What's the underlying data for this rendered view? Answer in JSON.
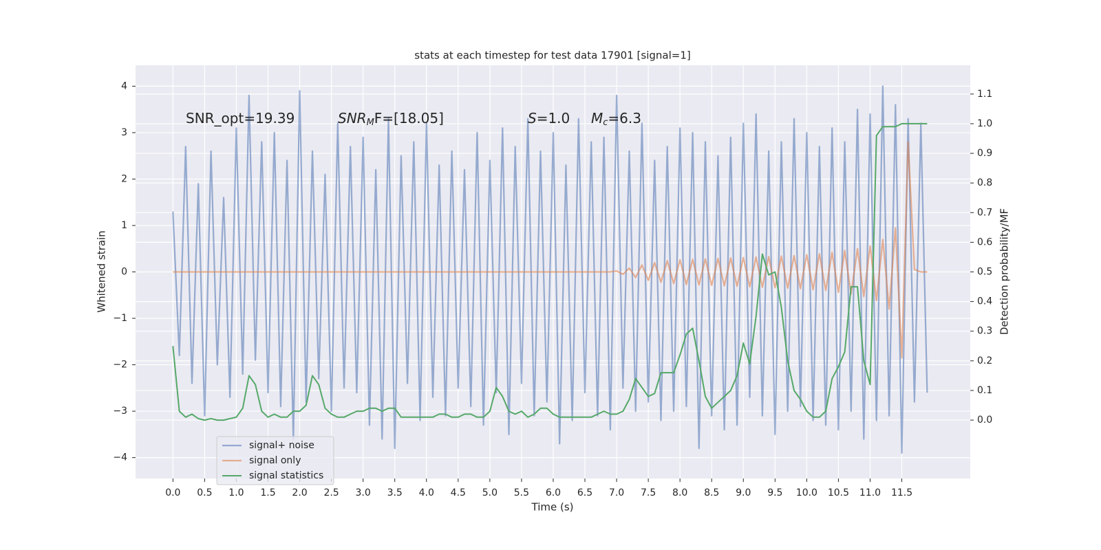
{
  "chart_data": {
    "type": "line",
    "title": "stats at each timestep for test data 17901 [signal=1]",
    "xlabel": "Time (s)",
    "ylabel": "Whitened strain",
    "y2label": "Detection probability/MF",
    "annotations": [
      {
        "text": "SNR_opt=19.39"
      },
      {
        "italic": "SNR",
        "sub": "M",
        "text": "F=[18.05]"
      },
      {
        "italic": "S",
        "text": "=1.0"
      },
      {
        "italic": "M",
        "sub": "c",
        "text": "=6.3"
      }
    ],
    "x": [
      0,
      0.1,
      0.2,
      0.3,
      0.4,
      0.5,
      0.6,
      0.7,
      0.8,
      0.9,
      1,
      1.1,
      1.2,
      1.3,
      1.4,
      1.5,
      1.6,
      1.7,
      1.8,
      1.9,
      2,
      2.1,
      2.2,
      2.3,
      2.4,
      2.5,
      2.6,
      2.7,
      2.8,
      2.9,
      3,
      3.1,
      3.2,
      3.3,
      3.4,
      3.5,
      3.6,
      3.7,
      3.8,
      3.9,
      4,
      4.1,
      4.2,
      4.3,
      4.4,
      4.5,
      4.6,
      4.7,
      4.8,
      4.9,
      5,
      5.1,
      5.2,
      5.3,
      5.4,
      5.5,
      5.6,
      5.7,
      5.8,
      5.9,
      6,
      6.1,
      6.2,
      6.3,
      6.4,
      6.5,
      6.6,
      6.7,
      6.8,
      6.9,
      7,
      7.1,
      7.2,
      7.3,
      7.4,
      7.5,
      7.6,
      7.7,
      7.8,
      7.9,
      8,
      8.1,
      8.2,
      8.3,
      8.4,
      8.5,
      8.6,
      8.7,
      8.8,
      8.9,
      9,
      9.1,
      9.2,
      9.3,
      9.4,
      9.5,
      9.6,
      9.7,
      9.8,
      9.9,
      10,
      10.1,
      10.2,
      10.3,
      10.4,
      10.5,
      10.6,
      10.7,
      10.8,
      10.9,
      11,
      11.1,
      11.2,
      11.3,
      11.4,
      11.5,
      11.6,
      11.7,
      11.8,
      11.9
    ],
    "series": [
      {
        "name": "signal+ noise",
        "color": "#4c72b0",
        "values": [
          1.3,
          -1.8,
          2.7,
          -2.4,
          1.9,
          -3.1,
          2.6,
          -2.0,
          1.6,
          -2.7,
          3.1,
          -2.2,
          3.8,
          -1.9,
          2.8,
          -2.6,
          3.0,
          -2.9,
          2.4,
          -3.6,
          3.9,
          -2.8,
          2.6,
          -2.3,
          2.1,
          -3.0,
          3.2,
          -2.5,
          2.7,
          -2.6,
          2.9,
          -3.3,
          2.2,
          -3.6,
          3.3,
          -3.8,
          2.5,
          -2.4,
          2.8,
          -3.2,
          3.2,
          -2.7,
          2.3,
          -3.1,
          2.6,
          -2.5,
          2.2,
          -2.9,
          3.0,
          -3.3,
          2.4,
          -2.6,
          3.1,
          -3.5,
          2.7,
          -2.4,
          3.3,
          -3.1,
          2.6,
          -2.8,
          3.0,
          -3.7,
          2.3,
          -3.2,
          3.3,
          -2.6,
          2.8,
          -3.1,
          2.9,
          -3.4,
          3.8,
          -2.5,
          2.6,
          -3.0,
          3.2,
          -2.8,
          2.4,
          -3.2,
          2.7,
          -3.0,
          3.1,
          -2.9,
          3.0,
          -3.8,
          2.8,
          -3.1,
          2.5,
          -3.4,
          2.9,
          -3.3,
          3.2,
          -2.7,
          3.4,
          -3.1,
          2.6,
          -3.5,
          2.8,
          -3.0,
          3.3,
          -2.9,
          3.0,
          -3.2,
          2.7,
          -3.3,
          3.1,
          -3.4,
          2.8,
          -3.0,
          3.5,
          -3.6,
          3.4,
          -3.2,
          4.0,
          -3.1,
          3.6,
          -3.9,
          3.3,
          -2.8,
          3.2,
          -2.6
        ]
      },
      {
        "name": "signal only",
        "color": "#dd8452",
        "values": [
          0,
          0,
          0,
          0,
          0,
          0,
          0,
          0,
          0,
          0,
          0,
          0,
          0,
          0,
          0,
          0,
          0,
          0,
          0,
          0,
          0,
          0,
          0,
          0,
          0,
          0,
          0,
          0,
          0,
          0,
          0,
          0,
          0,
          0,
          0,
          0,
          0,
          0,
          0,
          0,
          0,
          0,
          0,
          0,
          0,
          0,
          0,
          0,
          0,
          0,
          0,
          0,
          0,
          0,
          0,
          0,
          0,
          0,
          0,
          0,
          0,
          0,
          0,
          0,
          0,
          0,
          0,
          0,
          0,
          0,
          0.02,
          -0.05,
          0.08,
          -0.12,
          0.15,
          -0.18,
          0.2,
          -0.22,
          0.24,
          -0.25,
          0.26,
          -0.27,
          0.27,
          -0.28,
          0.28,
          -0.29,
          0.29,
          -0.3,
          0.3,
          -0.31,
          0.31,
          -0.32,
          0.32,
          -0.33,
          0.33,
          -0.34,
          0.34,
          -0.35,
          0.35,
          -0.36,
          0.37,
          -0.38,
          0.39,
          -0.4,
          0.42,
          -0.44,
          0.46,
          -0.48,
          0.5,
          -0.53,
          0.56,
          -0.62,
          0.7,
          -0.8,
          0.95,
          -1.85,
          2.8,
          0.05,
          0,
          0
        ]
      },
      {
        "name": "signal statistics",
        "color": "#55a868",
        "axis": "y2",
        "values": [
          0.25,
          0.03,
          0.01,
          0.02,
          0.005,
          0,
          0.005,
          0,
          0,
          0.005,
          0.01,
          0.04,
          0.15,
          0.12,
          0.03,
          0.01,
          0.02,
          0.01,
          0.01,
          0.03,
          0.03,
          0.05,
          0.15,
          0.12,
          0.04,
          0.02,
          0.01,
          0.01,
          0.02,
          0.03,
          0.03,
          0.04,
          0.04,
          0.03,
          0.04,
          0.04,
          0.01,
          0.01,
          0.01,
          0.01,
          0.01,
          0.01,
          0.02,
          0.02,
          0.01,
          0.01,
          0.02,
          0.02,
          0.01,
          0.01,
          0.03,
          0.11,
          0.08,
          0.03,
          0.02,
          0.03,
          0.01,
          0.02,
          0.04,
          0.04,
          0.02,
          0.01,
          0.01,
          0.01,
          0.01,
          0.01,
          0.01,
          0.02,
          0.03,
          0.02,
          0.02,
          0.03,
          0.07,
          0.14,
          0.11,
          0.08,
          0.09,
          0.16,
          0.16,
          0.16,
          0.22,
          0.29,
          0.31,
          0.2,
          0.08,
          0.04,
          0.06,
          0.08,
          0.1,
          0.15,
          0.26,
          0.19,
          0.35,
          0.56,
          0.49,
          0.5,
          0.38,
          0.2,
          0.1,
          0.07,
          0.03,
          0.01,
          0.01,
          0.03,
          0.14,
          0.18,
          0.23,
          0.45,
          0.45,
          0.2,
          0.12,
          0.96,
          0.99,
          0.99,
          0.99,
          1,
          1,
          1,
          1,
          1
        ]
      }
    ],
    "xlim": [
      -0.59,
      12.58
    ],
    "ylim": [
      -4.45,
      4.45
    ],
    "y2lim": [
      -0.197,
      1.197
    ],
    "xticks": [
      {
        "value": 0,
        "label": "0.0"
      },
      0.5,
      {
        "value": 1,
        "label": "1.0"
      },
      1.5,
      {
        "value": 2,
        "label": "2.0"
      },
      2.5,
      {
        "value": 3,
        "label": "3.0"
      },
      3.5,
      {
        "value": 4,
        "label": "4.0"
      },
      4.5,
      {
        "value": 5,
        "label": "5.0"
      },
      5.5,
      {
        "value": 6,
        "label": "6.0"
      },
      6.5,
      {
        "value": 7,
        "label": "7.0"
      },
      7.5,
      {
        "value": 8,
        "label": "8.0"
      },
      8.5,
      {
        "value": 9,
        "label": "9.0"
      },
      9.5,
      {
        "value": 10,
        "label": "10.0"
      },
      10.5,
      {
        "value": 11,
        "label": "11.0"
      },
      11.5
    ],
    "yticks": [
      {
        "value": -4,
        "label": "−4"
      },
      {
        "value": -3,
        "label": "−3"
      },
      {
        "value": -2,
        "label": "−2"
      },
      {
        "value": -1,
        "label": "−1"
      },
      0,
      1,
      2,
      3,
      4
    ],
    "y2ticks": [
      {
        "value": 0,
        "label": "0.0"
      },
      0.1,
      0.2,
      0.3,
      0.4,
      0.5,
      0.6,
      0.7,
      0.8,
      0.9,
      {
        "value": 1,
        "label": "1.0"
      },
      1.1
    ],
    "grid": true,
    "legend": "lower left",
    "background": "#eaeaf2"
  }
}
